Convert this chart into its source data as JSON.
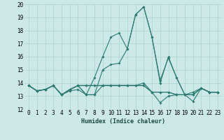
{
  "title": "",
  "xlabel": "Humidex (Indice chaleur)",
  "xlim": [
    -0.5,
    23.5
  ],
  "ylim": [
    12,
    20
  ],
  "yticks": [
    12,
    13,
    14,
    15,
    16,
    17,
    18,
    19,
    20
  ],
  "xticks": [
    0,
    1,
    2,
    3,
    4,
    5,
    6,
    7,
    8,
    9,
    10,
    11,
    12,
    13,
    14,
    15,
    16,
    17,
    18,
    19,
    20,
    21,
    22,
    23
  ],
  "xtick_labels": [
    "0",
    "1",
    "2",
    "3",
    "4",
    "5",
    "6",
    "7",
    "8",
    "9",
    "10",
    "11",
    "12",
    "13",
    "14",
    "15",
    "16",
    "17",
    "18",
    "19",
    "20",
    "21",
    "22",
    "23"
  ],
  "background_color": "#cce9e7",
  "line_color": "#2d7a72",
  "grid_color": "#aad4d0",
  "series": [
    [
      13.8,
      13.4,
      13.5,
      13.8,
      13.1,
      13.4,
      13.5,
      13.1,
      14.4,
      16.0,
      17.5,
      17.8,
      16.6,
      19.2,
      19.8,
      17.5,
      14.0,
      16.0,
      14.4,
      13.1,
      13.1,
      13.6,
      13.3,
      13.3
    ],
    [
      13.8,
      13.4,
      13.5,
      13.8,
      13.1,
      13.5,
      13.8,
      13.8,
      13.8,
      13.8,
      13.8,
      13.8,
      13.8,
      13.8,
      14.0,
      13.3,
      12.5,
      13.0,
      13.1,
      13.1,
      12.6,
      13.6,
      13.3,
      13.3
    ],
    [
      13.8,
      13.4,
      13.5,
      13.8,
      13.1,
      13.5,
      13.8,
      13.8,
      13.8,
      13.8,
      13.8,
      13.8,
      13.8,
      13.8,
      13.8,
      13.3,
      13.3,
      13.3,
      13.1,
      13.1,
      13.1,
      13.6,
      13.3,
      13.3
    ],
    [
      13.8,
      13.4,
      13.5,
      13.8,
      13.1,
      13.5,
      13.8,
      13.1,
      13.1,
      15.0,
      15.4,
      15.5,
      16.6,
      19.2,
      19.8,
      17.5,
      14.2,
      15.9,
      14.4,
      13.1,
      13.3,
      13.6,
      13.3,
      13.3
    ],
    [
      13.8,
      13.4,
      13.5,
      13.8,
      13.1,
      13.5,
      13.8,
      13.1,
      13.1,
      13.8,
      13.8,
      13.8,
      13.8,
      13.8,
      13.8,
      13.3,
      13.3,
      13.3,
      13.1,
      13.1,
      13.1,
      13.6,
      13.3,
      13.3
    ]
  ],
  "xlabel_fontsize": 6.0,
  "tick_fontsize": 5.5,
  "linewidth": 0.8,
  "markersize": 2.0
}
